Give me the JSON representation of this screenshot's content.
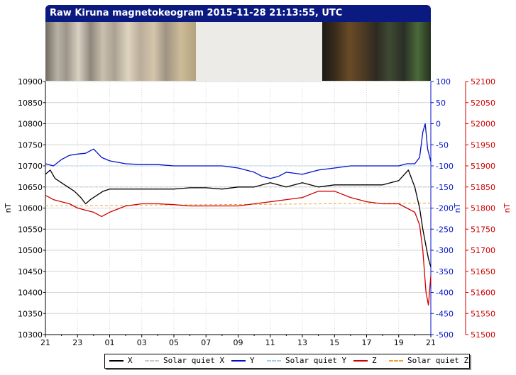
{
  "header": {
    "title": "Raw Kiruna magnetokeogram 2015-11-28 21:13:55, UTC"
  },
  "colors": {
    "title_bar": "#0a1a80",
    "x": "#000000",
    "quiet_x": "#c8c8c8",
    "y": "#0010c8",
    "quiet_y": "#a0d0f0",
    "z": "#d00000",
    "quiet_z": "#f0a030"
  },
  "chart_data": {
    "type": "line",
    "left_axis": {
      "label": "nT",
      "range": [
        10300,
        10900
      ],
      "ticks": [
        10300,
        10350,
        10400,
        10450,
        10500,
        10550,
        10600,
        10650,
        10700,
        10750,
        10800,
        10850,
        10900
      ]
    },
    "middle_axis": {
      "label": "nT",
      "range": [
        -500,
        100
      ],
      "ticks": [
        -500,
        -450,
        -400,
        -350,
        -300,
        -250,
        -200,
        -150,
        -100,
        -50,
        0,
        50,
        100
      ]
    },
    "right_axis": {
      "label": "nT",
      "range": [
        51500,
        52100
      ],
      "ticks": [
        51500,
        51550,
        51600,
        51650,
        51700,
        51750,
        51800,
        51850,
        51900,
        51950,
        52000,
        52050,
        52100
      ]
    },
    "x_axis": {
      "range_hours": [
        0,
        24
      ],
      "tick_labels": [
        "21",
        "23",
        "01",
        "03",
        "05",
        "07",
        "09",
        "11",
        "13",
        "15",
        "17",
        "19",
        "21"
      ],
      "tick_hours": [
        0,
        2,
        4,
        6,
        8,
        10,
        12,
        14,
        16,
        18,
        20,
        22,
        24
      ]
    },
    "grid": true,
    "legend_position": "bottom",
    "series": [
      {
        "name": "X",
        "axis": "left",
        "style": "solid",
        "x": [
          0,
          0.3,
          0.6,
          1.0,
          1.4,
          1.8,
          2.2,
          2.5,
          2.8,
          3.2,
          3.6,
          4.0,
          5.0,
          6.0,
          7.0,
          8.0,
          9.0,
          10.0,
          11.0,
          12.0,
          13.0,
          14.0,
          15.0,
          16.0,
          17.0,
          18.0,
          19.0,
          20.0,
          21.0,
          22.0,
          22.6,
          23.0,
          23.3,
          23.5,
          23.7,
          23.85,
          24.0
        ],
        "values": [
          10680,
          10690,
          10670,
          10660,
          10650,
          10640,
          10625,
          10610,
          10620,
          10630,
          10640,
          10645,
          10645,
          10645,
          10645,
          10645,
          10648,
          10648,
          10645,
          10650,
          10650,
          10660,
          10650,
          10660,
          10650,
          10655,
          10655,
          10655,
          10655,
          10665,
          10690,
          10650,
          10600,
          10550,
          10510,
          10480,
          10460
        ]
      },
      {
        "name": "Solar quiet X",
        "axis": "left",
        "style": "dashed",
        "x": [
          0,
          24
        ],
        "values": [
          10650,
          10650
        ]
      },
      {
        "name": "Y",
        "axis": "middle",
        "style": "solid",
        "x": [
          0,
          0.5,
          1.0,
          1.5,
          2.0,
          2.5,
          3.0,
          3.5,
          4.0,
          5.0,
          6.0,
          7.0,
          8.0,
          9.0,
          10.0,
          11.0,
          12.0,
          13.0,
          13.5,
          14.0,
          14.5,
          15.0,
          16.0,
          17.0,
          18.0,
          19.0,
          20.0,
          21.0,
          22.0,
          22.5,
          23.0,
          23.3,
          23.5,
          23.65,
          23.8,
          24.0
        ],
        "values": [
          -95,
          -100,
          -85,
          -75,
          -72,
          -70,
          -60,
          -80,
          -88,
          -95,
          -97,
          -97,
          -100,
          -100,
          -100,
          -100,
          -105,
          -115,
          -125,
          -130,
          -125,
          -115,
          -120,
          -110,
          -105,
          -100,
          -100,
          -100,
          -100,
          -95,
          -95,
          -80,
          -20,
          0,
          -60,
          -90
        ]
      },
      {
        "name": "Solar quiet Y",
        "axis": "middle",
        "style": "dashed",
        "x": [
          0,
          24
        ],
        "values": [
          -100,
          -100
        ]
      },
      {
        "name": "Z",
        "axis": "right",
        "style": "solid",
        "x": [
          0,
          0.5,
          1.0,
          1.5,
          2.0,
          2.5,
          3.0,
          3.5,
          4.0,
          5.0,
          6.0,
          7.0,
          8.0,
          9.0,
          10.0,
          11.0,
          12.0,
          13.0,
          14.0,
          15.0,
          16.0,
          17.0,
          18.0,
          19.0,
          20.0,
          21.0,
          22.0,
          22.5,
          23.0,
          23.3,
          23.5,
          23.7,
          23.85,
          24.0
        ],
        "values": [
          51830,
          51820,
          51815,
          51810,
          51800,
          51795,
          51790,
          51780,
          51790,
          51805,
          51810,
          51810,
          51808,
          51805,
          51805,
          51805,
          51805,
          51810,
          51815,
          51820,
          51825,
          51840,
          51840,
          51825,
          51815,
          51810,
          51810,
          51800,
          51790,
          51760,
          51700,
          51600,
          51570,
          51640
        ]
      },
      {
        "name": "Solar quiet Z",
        "axis": "right",
        "style": "dashed",
        "x": [
          0,
          24
        ],
        "values": [
          51805,
          51812
        ]
      }
    ]
  }
}
